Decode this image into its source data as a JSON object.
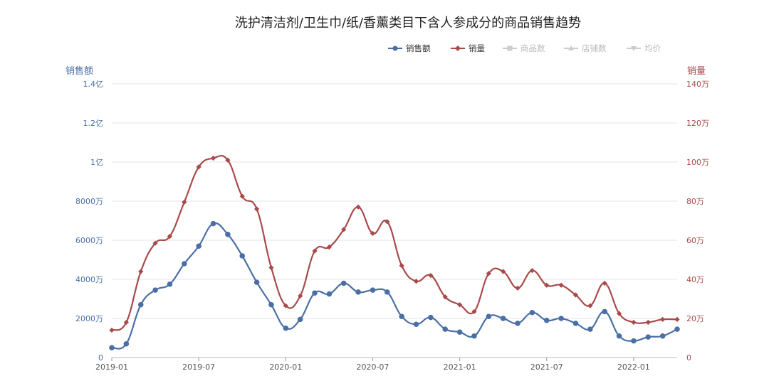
{
  "chart_data": {
    "type": "line",
    "title": "洗护清洁剂/卫生巾/纸/香薰类目下含人参成分的商品销售趋势",
    "legend": [
      {
        "key": "sales_amount",
        "label": "销售额",
        "color": "#4a6fa5",
        "marker": "circle",
        "active": true
      },
      {
        "key": "sales_volume",
        "label": "销量",
        "color": "#a84a4a",
        "marker": "diamond",
        "active": true
      },
      {
        "key": "product_count",
        "label": "商品数",
        "color": "#cccccc",
        "marker": "square",
        "active": false
      },
      {
        "key": "store_count",
        "label": "店铺数",
        "color": "#cccccc",
        "marker": "triangle",
        "active": false
      },
      {
        "key": "avg_price",
        "label": "均价",
        "color": "#cccccc",
        "marker": "triangle-down",
        "active": false
      }
    ],
    "legend_position": "top-right",
    "y_left": {
      "label": "销售额",
      "range": [
        0,
        140000000
      ],
      "ticks": [
        0,
        20000000,
        40000000,
        60000000,
        80000000,
        100000000,
        120000000,
        140000000
      ],
      "tick_labels": [
        "0",
        "2000万",
        "4000万",
        "6000万",
        "8000万",
        "1亿",
        "1.2亿",
        "1.4亿"
      ]
    },
    "y_right": {
      "label": "销量",
      "range": [
        0,
        1400000
      ],
      "ticks": [
        0,
        200000,
        400000,
        600000,
        800000,
        1000000,
        1200000,
        1400000
      ],
      "tick_labels": [
        "0",
        "20万",
        "40万",
        "60万",
        "80万",
        "100万",
        "120万",
        "140万"
      ]
    },
    "x_tick_labels": [
      {
        "index": 0,
        "label": "2019-01"
      },
      {
        "index": 6,
        "label": "2019-07"
      },
      {
        "index": 12,
        "label": "2020-01"
      },
      {
        "index": 18,
        "label": "2020-07"
      },
      {
        "index": 24,
        "label": "2021-01"
      },
      {
        "index": 30,
        "label": "2021-07"
      },
      {
        "index": 36,
        "label": "2022-01"
      }
    ],
    "x": [
      "2019-01",
      "2019-02",
      "2019-03",
      "2019-04",
      "2019-05",
      "2019-06",
      "2019-07",
      "2019-08",
      "2019-09",
      "2019-10",
      "2019-11",
      "2019-12",
      "2020-01",
      "2020-02",
      "2020-03",
      "2020-04",
      "2020-05",
      "2020-06",
      "2020-07",
      "2020-08",
      "2020-09",
      "2020-10",
      "2020-11",
      "2020-12",
      "2021-01",
      "2021-02",
      "2021-03",
      "2021-04",
      "2021-05",
      "2021-06",
      "2021-07",
      "2021-08",
      "2021-09",
      "2021-10",
      "2021-11",
      "2021-12",
      "2022-01",
      "2022-02",
      "2022-03",
      "2022-04"
    ],
    "series": [
      {
        "name": "销售额",
        "axis": "left",
        "color": "#4a6fa5",
        "values": [
          5000000,
          7000000,
          27000000,
          34500000,
          37500000,
          48000000,
          57000000,
          68500000,
          63000000,
          52000000,
          38500000,
          27000000,
          15000000,
          19500000,
          33000000,
          32500000,
          38000000,
          33500000,
          34500000,
          33500000,
          21000000,
          17000000,
          20500000,
          14500000,
          13000000,
          11000000,
          21000000,
          20000000,
          17500000,
          23000000,
          19000000,
          20000000,
          17500000,
          14500000,
          23500000,
          11000000,
          8500000,
          10500000,
          11000000,
          14500000
        ]
      },
      {
        "name": "销量",
        "axis": "right",
        "color": "#a84a4a",
        "values": [
          140000,
          180000,
          440000,
          585000,
          620000,
          795000,
          975000,
          1020000,
          1010000,
          825000,
          760000,
          460000,
          265000,
          315000,
          545000,
          565000,
          655000,
          770000,
          635000,
          695000,
          470000,
          390000,
          420000,
          310000,
          270000,
          235000,
          430000,
          440000,
          355000,
          445000,
          370000,
          370000,
          320000,
          265000,
          380000,
          225000,
          180000,
          180000,
          195000,
          195000
        ]
      }
    ]
  }
}
